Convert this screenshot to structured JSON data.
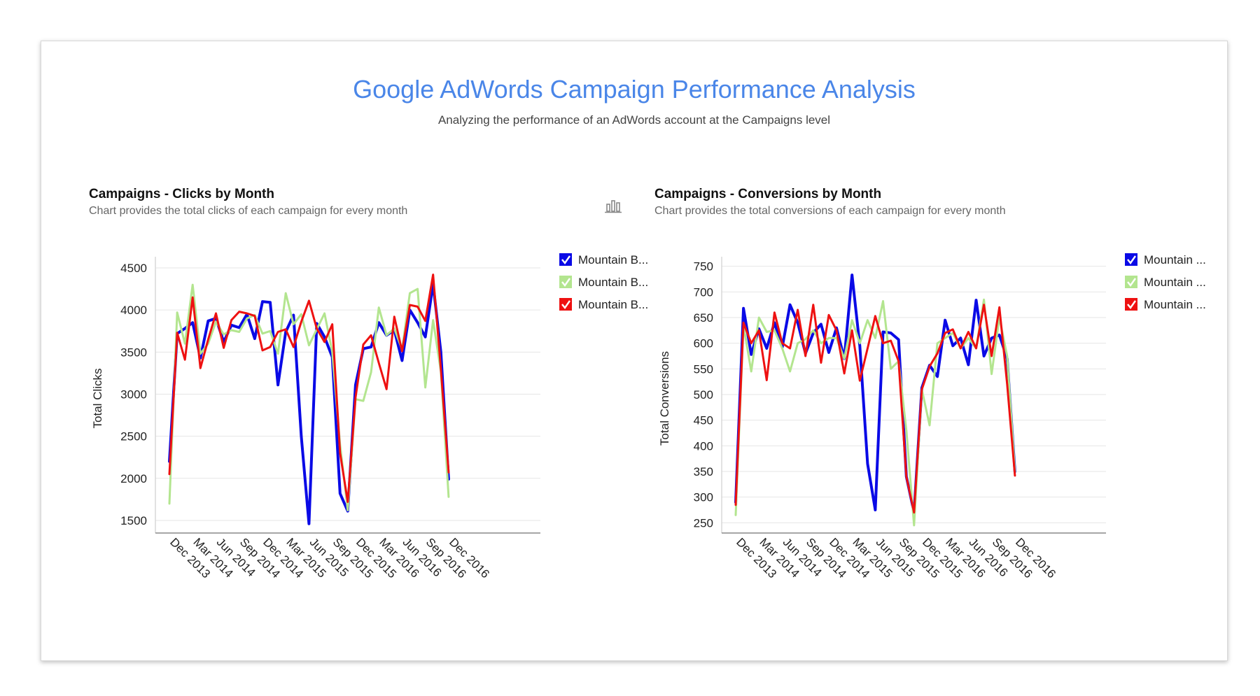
{
  "dashboard": {
    "title": "Google AdWords Campaign Performance Analysis",
    "subtitle": "Analyzing the performance of an AdWords account at the Campaigns level"
  },
  "colors": {
    "series_1": "#0a0ae6",
    "series_2": "#b3e58f",
    "series_3": "#ee1111",
    "title": "#4a86e8"
  },
  "chart_data": [
    {
      "type": "line",
      "title": "Campaigns - Clicks by Month",
      "subtitle": "Chart provides the total clicks of each campaign for every month",
      "xlabel": "",
      "ylabel": "Total Clicks",
      "ylim": [
        1350,
        4550
      ],
      "yticks": [
        1500,
        2000,
        2500,
        3000,
        3500,
        4000,
        4500
      ],
      "xtick_labels": [
        "Dec 2013",
        "Mar 2014",
        "Jun 2014",
        "Sep 2014",
        "Dec 2014",
        "Mar 2015",
        "Jun 2015",
        "Sep 2015",
        "Dec 2015",
        "Mar 2016",
        "Jun 2016",
        "Sep 2016",
        "Dec 2016"
      ],
      "x": [
        "Dec 2013",
        "Jan 2014",
        "Feb 2014",
        "Mar 2014",
        "Apr 2014",
        "May 2014",
        "Jun 2014",
        "Jul 2014",
        "Aug 2014",
        "Sep 2014",
        "Oct 2014",
        "Nov 2014",
        "Dec 2014",
        "Jan 2015",
        "Feb 2015",
        "Mar 2015",
        "Apr 2015",
        "May 2015",
        "Jun 2015",
        "Jul 2015",
        "Aug 2015",
        "Sep 2015",
        "Oct 2015",
        "Nov 2015",
        "Dec 2015",
        "Jan 2016",
        "Feb 2016",
        "Mar 2016",
        "Apr 2016",
        "May 2016",
        "Jun 2016",
        "Jul 2016",
        "Aug 2016",
        "Sep 2016",
        "Oct 2016",
        "Nov 2016",
        "Dec 2016"
      ],
      "legend_labels": [
        "Mountain B...",
        "Mountain B...",
        "Mountain B..."
      ],
      "series": [
        {
          "color": "#0a0ae6",
          "values": [
            2200,
            3720,
            3780,
            3850,
            3430,
            3870,
            3900,
            3620,
            3820,
            3790,
            3950,
            3660,
            4100,
            4090,
            3110,
            3740,
            3940,
            2500,
            1460,
            3840,
            3680,
            3440,
            1820,
            1610,
            3110,
            3540,
            3560,
            3850,
            3700,
            3760,
            3400,
            4000,
            3850,
            3680,
            4310,
            3500,
            1990
          ]
        },
        {
          "color": "#b3e58f",
          "values": [
            1700,
            3970,
            3600,
            4300,
            3480,
            3600,
            3860,
            3710,
            3760,
            3740,
            3900,
            3940,
            3720,
            3750,
            3480,
            4200,
            3830,
            3950,
            3580,
            3770,
            3960,
            3500,
            2400,
            1620,
            2940,
            2920,
            3260,
            4030,
            3700,
            3780,
            3530,
            4200,
            4250,
            3080,
            3880,
            3270,
            1780
          ]
        },
        {
          "color": "#ee1111",
          "values": [
            2050,
            3730,
            3410,
            4150,
            3310,
            3650,
            3960,
            3550,
            3880,
            3980,
            3960,
            3930,
            3520,
            3560,
            3740,
            3770,
            3560,
            3860,
            4110,
            3780,
            3620,
            3830,
            2300,
            1720,
            2960,
            3590,
            3700,
            3370,
            3060,
            3920,
            3510,
            4060,
            4040,
            3870,
            4420,
            3300,
            2070
          ]
        }
      ]
    },
    {
      "type": "line",
      "title": "Campaigns - Conversions by Month",
      "subtitle": "Chart provides the total conversions of each campaign for every month",
      "xlabel": "",
      "ylabel": "Total Conversions",
      "ylim": [
        230,
        755
      ],
      "yticks": [
        250,
        300,
        350,
        400,
        450,
        500,
        550,
        600,
        650,
        700,
        750
      ],
      "xtick_labels": [
        "Dec 2013",
        "Mar 2014",
        "Jun 2014",
        "Sep 2014",
        "Dec 2014",
        "Mar 2015",
        "Jun 2015",
        "Sep 2015",
        "Dec 2015",
        "Mar 2016",
        "Jun 2016",
        "Sep 2016",
        "Dec 2016"
      ],
      "x": [
        "Dec 2013",
        "Jan 2014",
        "Feb 2014",
        "Mar 2014",
        "Apr 2014",
        "May 2014",
        "Jun 2014",
        "Jul 2014",
        "Aug 2014",
        "Sep 2014",
        "Oct 2014",
        "Nov 2014",
        "Dec 2014",
        "Jan 2015",
        "Feb 2015",
        "Mar 2015",
        "Apr 2015",
        "May 2015",
        "Jun 2015",
        "Jul 2015",
        "Aug 2015",
        "Sep 2015",
        "Oct 2015",
        "Nov 2015",
        "Dec 2015",
        "Jan 2016",
        "Feb 2016",
        "Mar 2016",
        "Apr 2016",
        "May 2016",
        "Jun 2016",
        "Jul 2016",
        "Aug 2016",
        "Sep 2016",
        "Oct 2016",
        "Nov 2016",
        "Dec 2016"
      ],
      "legend_labels": [
        "Mountain ...",
        "Mountain ...",
        "Mountain ..."
      ],
      "series": [
        {
          "color": "#0a0ae6",
          "values": [
            290,
            668,
            578,
            628,
            590,
            640,
            592,
            675,
            640,
            580,
            620,
            637,
            582,
            630,
            570,
            733,
            595,
            365,
            275,
            622,
            620,
            607,
            340,
            270,
            513,
            557,
            535,
            645,
            595,
            610,
            558,
            684,
            575,
            610,
            616,
            570,
            350
          ]
        },
        {
          "color": "#b3e58f",
          "values": [
            265,
            635,
            545,
            650,
            622,
            625,
            590,
            545,
            600,
            608,
            625,
            600,
            610,
            610,
            570,
            645,
            600,
            645,
            610,
            682,
            550,
            565,
            430,
            245,
            510,
            440,
            600,
            610,
            620,
            590,
            610,
            590,
            685,
            540,
            650,
            575,
            350
          ]
        },
        {
          "color": "#ee1111",
          "values": [
            285,
            640,
            600,
            625,
            528,
            660,
            600,
            590,
            665,
            575,
            675,
            562,
            655,
            625,
            541,
            625,
            527,
            590,
            653,
            600,
            605,
            565,
            340,
            270,
            510,
            555,
            580,
            620,
            627,
            590,
            622,
            590,
            675,
            575,
            670,
            520,
            342
          ]
        }
      ]
    }
  ]
}
